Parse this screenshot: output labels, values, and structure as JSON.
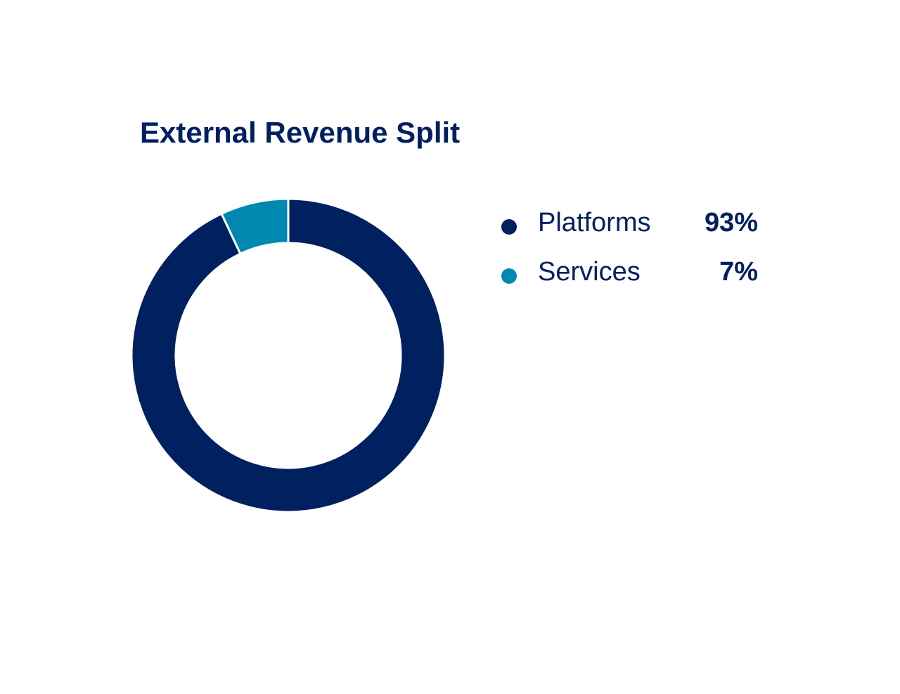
{
  "chart_data": {
    "type": "pie",
    "title": "External Revenue Split",
    "categories": [
      "Platforms",
      "Services"
    ],
    "values": [
      93,
      7
    ],
    "value_labels": [
      "93%",
      "7%"
    ],
    "colors": [
      "#002060",
      "#0088B0"
    ],
    "donut": true,
    "legend_position": "right"
  }
}
